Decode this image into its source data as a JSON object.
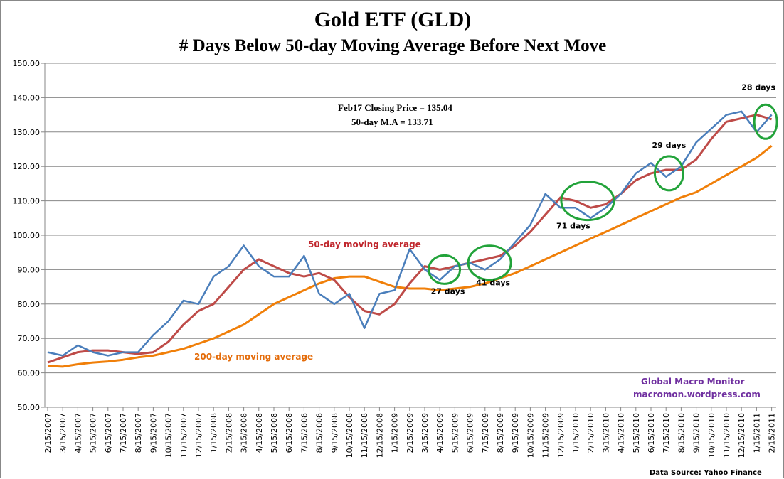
{
  "chart_data": {
    "type": "line",
    "title": "Gold ETF (GLD)",
    "subtitle": "# Days Below 50-day Moving Average Before Next Move",
    "xlabel": "",
    "ylabel": "",
    "ylim": [
      50,
      150
    ],
    "yticks": [
      "50.00",
      "60.00",
      "70.00",
      "80.00",
      "90.00",
      "100.00",
      "110.00",
      "120.00",
      "130.00",
      "140.00",
      "150.00"
    ],
    "grid": true,
    "x": [
      "2/15/2007",
      "3/15/2007",
      "4/15/2007",
      "5/15/2007",
      "6/15/2007",
      "7/15/2007",
      "8/15/2007",
      "9/15/2007",
      "10/15/2007",
      "11/15/2007",
      "12/15/2007",
      "1/15/2008",
      "2/15/2008",
      "3/15/2008",
      "4/15/2008",
      "5/15/2008",
      "6/15/2008",
      "7/15/2008",
      "8/15/2008",
      "9/15/2008",
      "10/15/2008",
      "11/15/2008",
      "12/15/2008",
      "1/15/2009",
      "2/15/2009",
      "3/15/2009",
      "4/15/2009",
      "5/15/2009",
      "6/15/2009",
      "7/15/2009",
      "8/15/2009",
      "9/15/2009",
      "10/15/2009",
      "11/15/2009",
      "12/15/2009",
      "1/15/2010",
      "2/15/2010",
      "3/15/2010",
      "4/15/2010",
      "5/15/2010",
      "6/15/2010",
      "7/15/2010",
      "8/15/2010",
      "9/15/2010",
      "10/15/2010",
      "11/15/2010",
      "12/15/2010",
      "1/15/2011",
      "2/15/2011"
    ],
    "series": [
      {
        "key": "price",
        "color": "#4a7ebb",
        "values": [
          66,
          65,
          68,
          66,
          65,
          66,
          66,
          71,
          75,
          81,
          80,
          88,
          91,
          97,
          91,
          88,
          88,
          94,
          83,
          80,
          83,
          73,
          83,
          84,
          96,
          90,
          87,
          91,
          92,
          90,
          93,
          98,
          103,
          112,
          108,
          108,
          105,
          108,
          112,
          118,
          121,
          117,
          120,
          127,
          131,
          135,
          136,
          130,
          135.04
        ]
      },
      {
        "name": "50-day moving average",
        "color": "#be4b48",
        "values": [
          63,
          64.5,
          66,
          66.5,
          66.5,
          66,
          65.5,
          66,
          69,
          74,
          78,
          80,
          85,
          90,
          93,
          91,
          89,
          88,
          89,
          87,
          82,
          78,
          77,
          80,
          86,
          91,
          90,
          91,
          92,
          93,
          94,
          97,
          101,
          106,
          111,
          110,
          108,
          109,
          112,
          116,
          118,
          119,
          119,
          122,
          128,
          133,
          134,
          135,
          133.71
        ]
      },
      {
        "name": "200-day moving average",
        "color": "#f07f09",
        "values": [
          62,
          61.8,
          62.5,
          63,
          63.3,
          63.8,
          64.5,
          65,
          66,
          67,
          68.5,
          70,
          72,
          74,
          77,
          80,
          82,
          84,
          86,
          87.5,
          88,
          88,
          86.5,
          85,
          84.5,
          84.5,
          84,
          84.5,
          85,
          86,
          87.5,
          89,
          91,
          93,
          95,
          97,
          99,
          101,
          103,
          105,
          107,
          109,
          111,
          112.5,
          115,
          117.5,
          120,
          122.5,
          126
        ]
      }
    ],
    "annotations": [
      {
        "label": "27 days",
        "date_index": 26.3,
        "value": 90
      },
      {
        "label": "41 days",
        "date_index": 29.3,
        "value": 92
      },
      {
        "label": "71 days",
        "date_index": 35.8,
        "value": 110
      },
      {
        "label": "29 days",
        "date_index": 41.2,
        "value": 118
      },
      {
        "label": "28 days",
        "date_index": 47.6,
        "value": 133
      }
    ],
    "circle_color": "#22a33a"
  },
  "labels": {
    "closing_price": "Feb17 Closing Price  = 135.04",
    "ma50_value": "50-day M.A    = 133.71",
    "ma50_label": "50-day moving average",
    "ma200_label": "200-day moving average",
    "brand_line1": "Global Macro Monitor",
    "brand_line2": "macromon.wordpress.com",
    "source": "Data Source:  Yahoo Finance"
  }
}
